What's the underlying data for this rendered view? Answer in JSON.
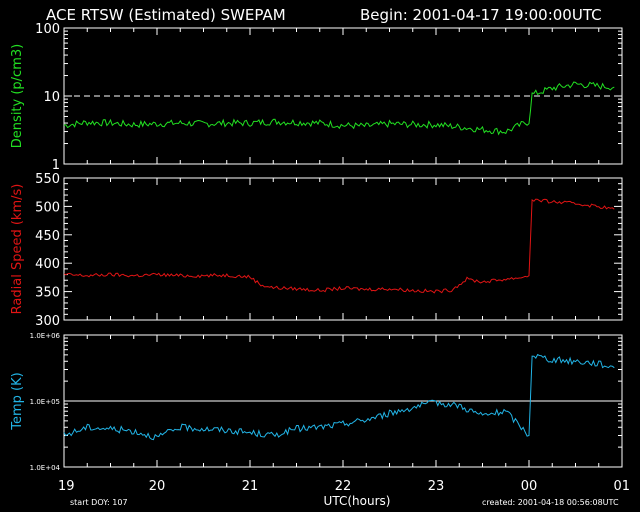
{
  "header": {
    "title": "ACE RTSW (Estimated) SWEPAM",
    "begin": "Begin: 2001-04-17 19:00:00UTC"
  },
  "footer": {
    "start_doy": "start DOY: 107",
    "created": "created: 2001-04-18 00:56:08UTC"
  },
  "colors": {
    "background": "#000000",
    "axes": "#ffffff",
    "density": "#22e022",
    "speed": "#e01414",
    "temp": "#22b4e6"
  },
  "chart_data": [
    {
      "type": "line",
      "ylabel": "Density (p/cm3)",
      "yscale": "log",
      "ylim": [
        1,
        100
      ],
      "ytick_values": [
        1,
        10,
        100
      ],
      "ytick_labels": [
        "1",
        "10",
        "100"
      ],
      "reference_line": {
        "value": 10,
        "style": "dashed"
      },
      "xlim": [
        "19:00",
        "01:00"
      ],
      "series": [
        {
          "color": "#22e022",
          "x": [
            "19:00",
            "19:15",
            "19:30",
            "19:45",
            "20:00",
            "20:15",
            "20:30",
            "20:45",
            "21:00",
            "21:15",
            "21:30",
            "21:45",
            "22:00",
            "22:15",
            "22:30",
            "22:45",
            "23:00",
            "23:15",
            "23:30",
            "23:45",
            "23:55",
            "00:00",
            "00:02",
            "00:15",
            "00:30",
            "00:45",
            "00:55"
          ],
          "y": [
            3.7,
            4.1,
            4.0,
            3.8,
            3.9,
            4.0,
            3.9,
            4.0,
            4.0,
            4.2,
            4.1,
            4.0,
            3.7,
            3.6,
            3.9,
            3.8,
            3.8,
            3.5,
            3.2,
            3.0,
            3.8,
            4.2,
            10.5,
            13.0,
            15.0,
            14.0,
            13.5
          ]
        }
      ]
    },
    {
      "type": "line",
      "ylabel": "Radial Speed (km/s)",
      "ylim": [
        300,
        550
      ],
      "ytick_values": [
        300,
        350,
        400,
        450,
        500,
        550
      ],
      "ytick_labels": [
        "300",
        "350",
        "400",
        "450",
        "500",
        "550"
      ],
      "xlim": [
        "19:00",
        "01:00"
      ],
      "series": [
        {
          "color": "#e01414",
          "x": [
            "19:00",
            "19:15",
            "19:30",
            "19:45",
            "20:00",
            "20:15",
            "20:30",
            "20:45",
            "21:00",
            "21:07",
            "21:15",
            "21:30",
            "21:45",
            "22:00",
            "22:15",
            "22:30",
            "22:45",
            "23:00",
            "23:10",
            "23:20",
            "23:30",
            "23:45",
            "23:55",
            "00:00",
            "00:02",
            "00:15",
            "00:30",
            "00:45",
            "00:55"
          ],
          "y": [
            380,
            378,
            380,
            378,
            380,
            378,
            378,
            379,
            376,
            362,
            357,
            355,
            352,
            356,
            354,
            355,
            352,
            350,
            353,
            372,
            367,
            372,
            375,
            378,
            512,
            508,
            505,
            500,
            495
          ]
        }
      ]
    },
    {
      "type": "line",
      "ylabel": "Temp (K)",
      "yscale": "log",
      "ylim": [
        10000,
        1000000
      ],
      "ytick_values": [
        10000,
        100000,
        1000000
      ],
      "ytick_labels": [
        "1.0E+04",
        "1.0E+05",
        "1.0E+06"
      ],
      "reference_line": {
        "value": 100000,
        "style": "solid"
      },
      "xlim": [
        "19:00",
        "01:00"
      ],
      "xlabel": "UTC(hours)",
      "xtick_values": [
        "19:00",
        "20:00",
        "21:00",
        "22:00",
        "23:00",
        "00:00",
        "01:00"
      ],
      "xtick_labels": [
        "19",
        "20",
        "21",
        "22",
        "23",
        "00",
        "01"
      ],
      "series": [
        {
          "color": "#22b4e6",
          "x": [
            "19:00",
            "19:15",
            "19:30",
            "19:45",
            "20:00",
            "20:15",
            "20:30",
            "20:45",
            "21:00",
            "21:15",
            "21:30",
            "21:45",
            "22:00",
            "22:15",
            "22:30",
            "22:45",
            "23:00",
            "23:15",
            "23:30",
            "23:45",
            "23:55",
            "00:00",
            "00:02",
            "00:15",
            "00:30",
            "00:45",
            "00:55"
          ],
          "y": [
            30000,
            40000,
            38000,
            35000,
            28000,
            40000,
            38000,
            36000,
            33000,
            30000,
            38000,
            40000,
            45000,
            52000,
            65000,
            80000,
            95000,
            85000,
            60000,
            70000,
            40000,
            30000,
            500000,
            420000,
            400000,
            370000,
            320000
          ]
        }
      ]
    }
  ]
}
